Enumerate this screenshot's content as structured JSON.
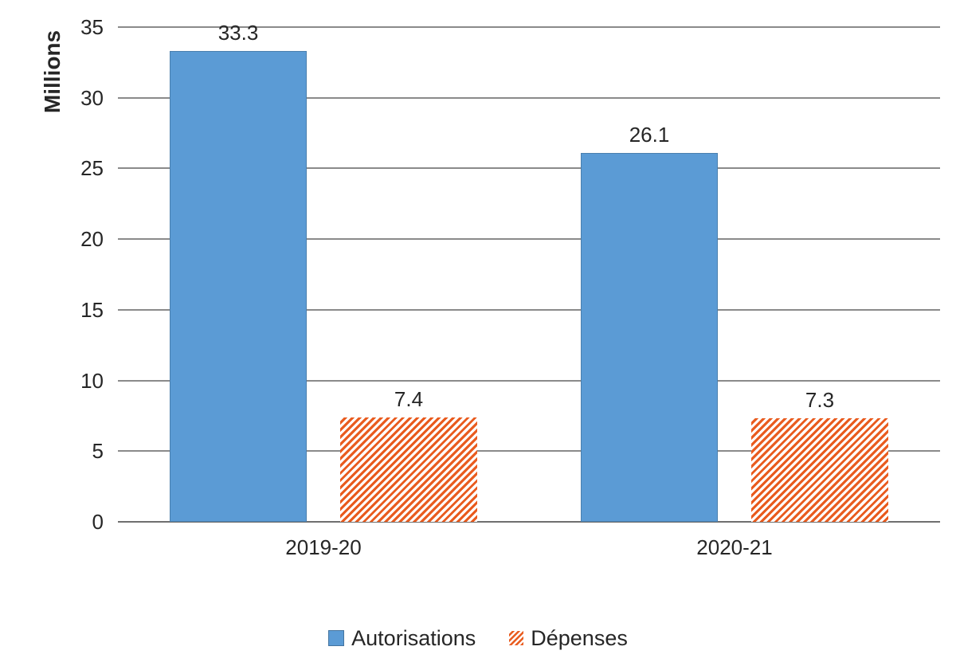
{
  "chart_data": {
    "type": "bar",
    "title": "",
    "ylabel": "Millions",
    "xlabel": "",
    "categories": [
      "2019-20",
      "2020-21"
    ],
    "series": [
      {
        "name": "Autorisations",
        "values": [
          33.3,
          26.1
        ],
        "color": "#5B9BD5",
        "pattern": "solid"
      },
      {
        "name": "Dépenses",
        "values": [
          7.4,
          7.3
        ],
        "color": "#E95B1E",
        "pattern": "diagonal-hatch"
      }
    ],
    "ylim": [
      0,
      35
    ],
    "ytick_step": 5,
    "yticks": [
      0,
      5,
      10,
      15,
      20,
      25,
      30,
      35
    ],
    "grid": true,
    "legend_position": "bottom",
    "colors": {
      "text": "#262626",
      "gridline": "#8A8A8A",
      "axis_line": "#6F6F6F",
      "background": "#FFFFFF"
    }
  }
}
